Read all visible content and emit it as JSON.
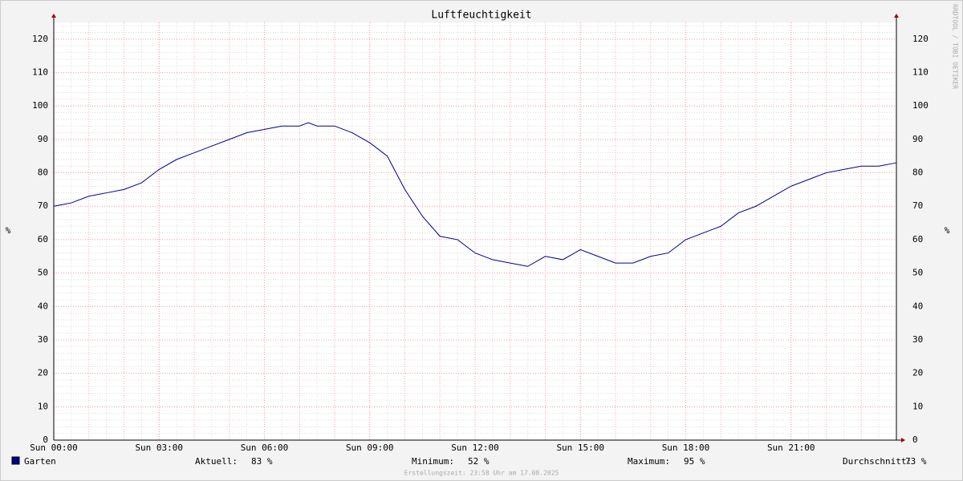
{
  "chart_data": {
    "type": "line",
    "title": "Luftfeuchtigkeit",
    "y_label": "%",
    "watermark": "RRDTOOL / TOBI OETIKER",
    "x": [
      0,
      0.5,
      1,
      1.5,
      2,
      2.5,
      3,
      3.5,
      4,
      4.5,
      5,
      5.5,
      6,
      6.5,
      7,
      7.25,
      7.5,
      8,
      8.5,
      9,
      9.5,
      10,
      10.5,
      11,
      11.5,
      12,
      12.5,
      13,
      13.5,
      14,
      14.5,
      15,
      15.5,
      16,
      16.5,
      17,
      17.5,
      18,
      18.5,
      19,
      19.5,
      20,
      20.5,
      21,
      21.5,
      22,
      22.5,
      23,
      23.5,
      24
    ],
    "series": [
      {
        "name": "Garten",
        "color": "#000090",
        "values": [
          70,
          71,
          73,
          74,
          75,
          77,
          81,
          84,
          86,
          88,
          90,
          92,
          93,
          94,
          94,
          95,
          94,
          94,
          92,
          89,
          85,
          75,
          67,
          61,
          60,
          56,
          54,
          53,
          52,
          55,
          54,
          57,
          55,
          53,
          53,
          55,
          56,
          60,
          62,
          64,
          68,
          70,
          73,
          76,
          78,
          80,
          81,
          82,
          82,
          83
        ]
      }
    ],
    "xlim": [
      0,
      24
    ],
    "xticks": [
      {
        "value": 0,
        "label": "Sun 00:00"
      },
      {
        "value": 3,
        "label": "Sun 03:00"
      },
      {
        "value": 6,
        "label": "Sun 06:00"
      },
      {
        "value": 9,
        "label": "Sun 09:00"
      },
      {
        "value": 12,
        "label": "Sun 12:00"
      },
      {
        "value": 15,
        "label": "Sun 15:00"
      },
      {
        "value": 18,
        "label": "Sun 18:00"
      },
      {
        "value": 21,
        "label": "Sun 21:00"
      }
    ],
    "ylim": [
      0,
      125
    ],
    "yticks": [
      0,
      10,
      20,
      30,
      40,
      50,
      60,
      70,
      80,
      90,
      100,
      110,
      120
    ],
    "grid": true,
    "stats": {
      "labels": [
        "Aktuell:",
        "Minimum:",
        "Maximum:",
        "Durchschnitt:"
      ],
      "values": [
        83,
        52,
        95,
        73
      ],
      "value_labels": [
        "83 %",
        "52 %",
        "95 %",
        "73 %"
      ]
    },
    "footer": "Erstellungszeit: 23:58 Uhr am 17.08.2025"
  }
}
